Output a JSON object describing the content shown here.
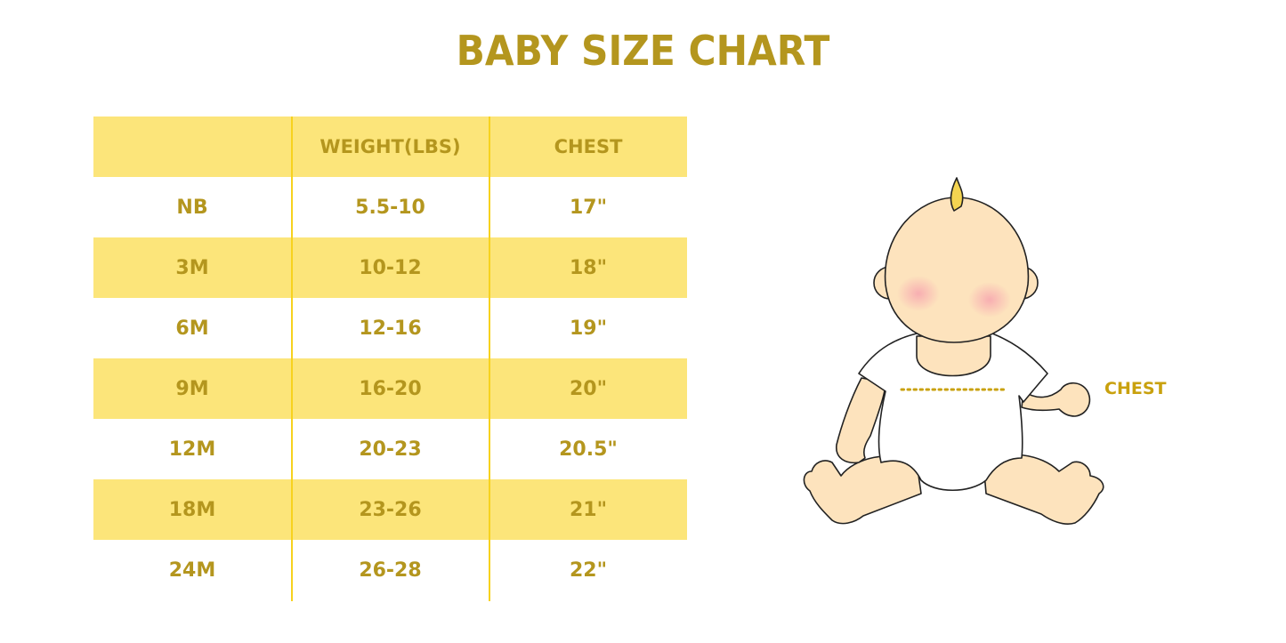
{
  "title": "BABY SIZE CHART",
  "table": {
    "headers": [
      "",
      "WEIGHT(LBS)",
      "CHEST"
    ],
    "rows": [
      [
        "NB",
        "5.5-10",
        "17\""
      ],
      [
        "3M",
        "10-12",
        "18\""
      ],
      [
        "6M",
        "12-16",
        "19\""
      ],
      [
        "9M",
        "16-20",
        "20\""
      ],
      [
        "12M",
        "20-23",
        "20.5\""
      ],
      [
        "18M",
        "23-26",
        "21\""
      ],
      [
        "24M",
        "26-28",
        "22\""
      ]
    ]
  },
  "illustration": {
    "chest_label": "CHEST"
  },
  "colors": {
    "text": "#b4961e",
    "stripe": "#fce57a",
    "divider": "#f7d21e",
    "skin": "#fde3bd"
  }
}
